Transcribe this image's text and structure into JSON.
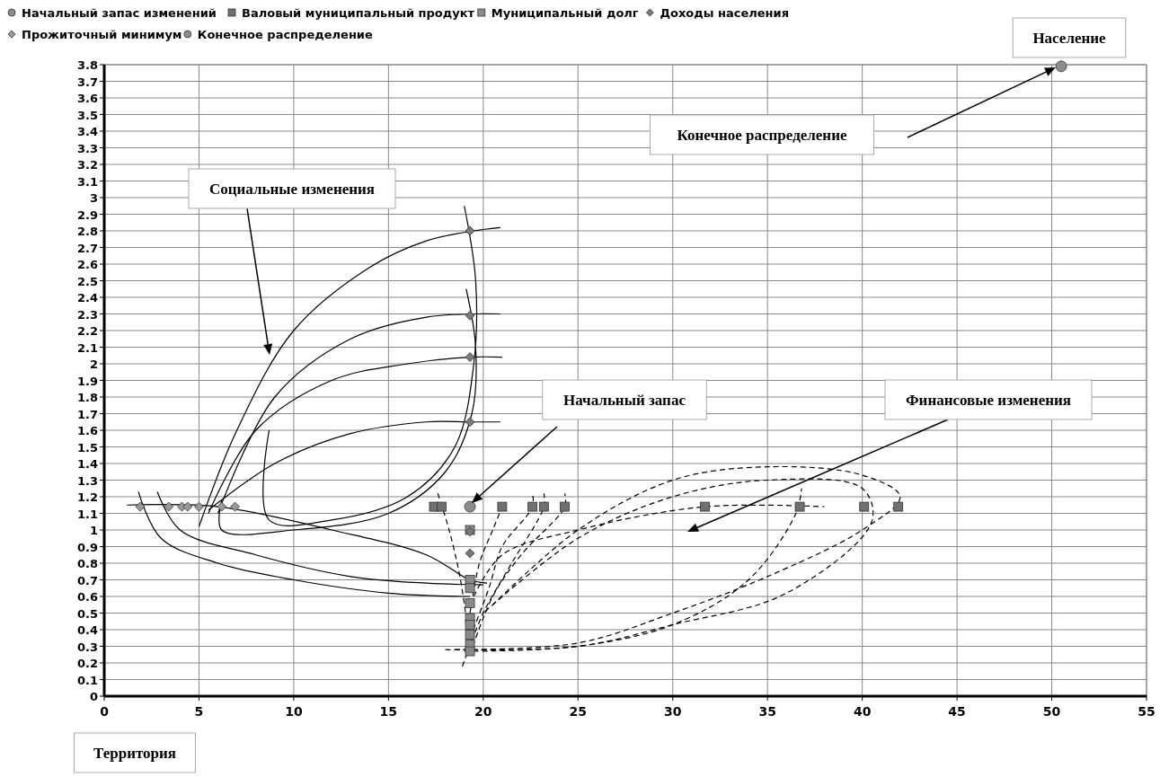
{
  "chart_data": {
    "type": "scatter",
    "xlabel": "Территория",
    "ylabel": "Население",
    "xlim": [
      0,
      55
    ],
    "xticks": [
      0,
      5,
      10,
      15,
      20,
      25,
      30,
      35,
      40,
      45,
      50,
      55
    ],
    "ylim": [
      0,
      3.8
    ],
    "yticks": [
      0,
      0.1,
      0.2,
      0.3,
      0.4,
      0.5,
      0.6,
      0.7,
      0.8,
      0.9,
      1,
      1.1,
      1.2,
      1.3,
      1.4,
      1.5,
      1.6,
      1.7,
      1.8,
      1.9,
      2,
      2.1,
      2.2,
      2.3,
      2.4,
      2.5,
      2.6,
      2.7,
      2.8,
      2.9,
      3,
      3.1,
      3.2,
      3.3,
      3.4,
      3.5,
      3.6,
      3.7,
      3.8
    ],
    "grid": true,
    "legend": "top",
    "annotations": [
      "Конечное распределение",
      "Социальные изменения",
      "Начальный запас",
      "Финансовые изменения"
    ],
    "series": [
      {
        "name": "Начальный запас изменений",
        "marker": "circle",
        "color": "#8c8c8c",
        "x": [
          19.3
        ],
        "values": [
          1.14
        ]
      },
      {
        "name": "Валовый муниципальный продукт",
        "marker": "square",
        "color": "#707070",
        "x": [
          17.4,
          17.8,
          21.0,
          22.6,
          23.2,
          24.3,
          31.7,
          36.7,
          40.1,
          41.9
        ],
        "values": [
          1.14,
          1.14,
          1.14,
          1.14,
          1.14,
          1.14,
          1.14,
          1.14,
          1.14,
          1.14
        ]
      },
      {
        "name": "Муниципальный долг",
        "marker": "square",
        "color": "#8a8a8a",
        "x": [
          19.3,
          19.3,
          19.3,
          19.3,
          19.3,
          19.3,
          19.3,
          19.3,
          19.3
        ],
        "values": [
          1.0,
          0.7,
          0.65,
          0.56,
          0.47,
          0.43,
          0.37,
          0.31,
          0.27
        ]
      },
      {
        "name": "Доходы населения",
        "marker": "diamond",
        "color": "#7a7a7a",
        "x": [
          19.3,
          19.3,
          19.3,
          19.3,
          19.3,
          19.3
        ],
        "values": [
          2.8,
          2.29,
          2.04,
          1.65,
          0.99,
          0.86
        ]
      },
      {
        "name": "Прожиточный минимум",
        "marker": "diamond",
        "color": "#9a9a9a",
        "x": [
          1.9,
          3.4,
          4.1,
          4.4,
          5.0,
          6.2,
          6.9
        ],
        "values": [
          1.14,
          1.14,
          1.14,
          1.14,
          1.14,
          1.14,
          1.14
        ]
      },
      {
        "name": "Конечное распределение",
        "marker": "circle",
        "color": "#8c8c8c",
        "x": [
          50.5
        ],
        "values": [
          3.79
        ]
      },
      {
        "type": "line",
        "marker": "none",
        "line_style": "solid",
        "color": "#000000",
        "x": [
          5.0,
          7.0,
          10.0,
          14.0,
          17.0,
          19.5,
          20.9
        ],
        "values": [
          1.02,
          1.6,
          2.2,
          2.58,
          2.74,
          2.8,
          2.82
        ]
      },
      {
        "type": "line",
        "marker": "none",
        "line_style": "solid",
        "color": "#000000",
        "x": [
          6.0,
          9.0,
          13.0,
          17.0,
          19.5,
          20.9
        ],
        "values": [
          1.1,
          1.8,
          2.15,
          2.28,
          2.3,
          2.3
        ]
      },
      {
        "type": "line",
        "marker": "none",
        "line_style": "solid",
        "color": "#000000",
        "x": [
          5.5,
          8.0,
          12.0,
          16.0,
          19.3,
          21.0
        ],
        "values": [
          1.1,
          1.6,
          1.9,
          2.0,
          2.04,
          2.04
        ]
      },
      {
        "type": "line",
        "marker": "none",
        "line_style": "solid",
        "color": "#000000",
        "x": [
          5.5,
          9.0,
          13.0,
          17.0,
          19.3,
          20.9
        ],
        "values": [
          1.12,
          1.4,
          1.58,
          1.65,
          1.65,
          1.65
        ]
      },
      {
        "type": "line",
        "marker": "none",
        "line_style": "solid",
        "color": "#000000",
        "x": [
          19.0,
          19.6,
          19.5,
          18.5,
          16.0,
          12.0,
          8.7,
          8.7
        ],
        "values": [
          2.95,
          2.5,
          2.0,
          1.5,
          1.2,
          1.06,
          1.06,
          1.6
        ]
      },
      {
        "type": "line",
        "marker": "none",
        "line_style": "solid",
        "color": "#000000",
        "x": [
          19.1,
          19.6,
          19.4,
          18.0,
          15.0,
          10.0,
          6.2,
          6.2
        ],
        "values": [
          2.45,
          2.1,
          1.7,
          1.35,
          1.1,
          1.0,
          1.0,
          1.18
        ]
      },
      {
        "type": "line",
        "marker": "none",
        "line_style": "solid",
        "color": "#000000",
        "x": [
          1.8,
          3.0,
          6.0,
          10.0,
          15.0,
          19.3
        ],
        "values": [
          1.23,
          0.95,
          0.8,
          0.7,
          0.62,
          0.6
        ]
      },
      {
        "type": "line",
        "marker": "none",
        "line_style": "solid",
        "color": "#000000",
        "x": [
          2.8,
          4.0,
          8.0,
          13.0,
          17.0,
          20.0
        ],
        "values": [
          1.23,
          1.0,
          0.85,
          0.72,
          0.68,
          0.67
        ]
      },
      {
        "type": "line",
        "marker": "none",
        "line_style": "solid",
        "color": "#000000",
        "x": [
          1.2,
          6.0,
          12.0,
          17.0,
          19.3,
          20.2
        ],
        "values": [
          1.15,
          1.14,
          1.0,
          0.85,
          0.7,
          0.68
        ]
      },
      {
        "type": "line",
        "marker": "none",
        "line_style": "dashed",
        "color": "#000000",
        "x": [
          18.5,
          25.0,
          30.0,
          35.0,
          40.0,
          42.0,
          40.0,
          35.0,
          30.0,
          25.0,
          20.5
        ],
        "values": [
          0.28,
          0.32,
          0.5,
          0.72,
          1.0,
          1.2,
          1.33,
          1.38,
          1.3,
          1.0,
          0.55
        ]
      },
      {
        "type": "line",
        "marker": "none",
        "line_style": "dashed",
        "color": "#000000",
        "x": [
          18.0,
          25.0,
          30.0,
          36.0,
          40.5,
          40.0,
          35.0,
          30.0,
          25.0,
          20.0
        ],
        "values": [
          0.28,
          0.3,
          0.43,
          0.62,
          1.05,
          1.25,
          1.3,
          1.2,
          0.95,
          0.5
        ]
      },
      {
        "type": "line",
        "marker": "none",
        "line_style": "dashed",
        "color": "#000000",
        "x": [
          19.0,
          25.0,
          30.0,
          34.0,
          36.5,
          36.8
        ],
        "values": [
          0.27,
          0.3,
          0.43,
          0.7,
          1.1,
          1.25
        ]
      },
      {
        "type": "line",
        "marker": "none",
        "line_style": "dashed",
        "color": "#000000",
        "x": [
          19.5,
          21.0,
          25.0,
          31.7,
          38.0
        ],
        "values": [
          0.6,
          0.85,
          1.0,
          1.14,
          1.14
        ]
      },
      {
        "type": "line",
        "marker": "none",
        "line_style": "dashed",
        "color": "#000000",
        "x": [
          19.3,
          20.5,
          22.0,
          24.3,
          24.3
        ],
        "values": [
          0.25,
          0.6,
          0.85,
          1.14,
          1.22
        ]
      },
      {
        "type": "line",
        "marker": "none",
        "line_style": "dashed",
        "color": "#000000",
        "x": [
          18.9,
          20.0,
          21.5,
          23.2,
          23.2
        ],
        "values": [
          0.18,
          0.5,
          0.8,
          1.14,
          1.22
        ]
      },
      {
        "type": "line",
        "marker": "none",
        "line_style": "dashed",
        "color": "#000000",
        "x": [
          19.3,
          20.3,
          21.0,
          22.6,
          22.6
        ],
        "values": [
          0.35,
          0.65,
          0.9,
          1.14,
          1.22
        ]
      },
      {
        "type": "line",
        "marker": "none",
        "line_style": "dashed",
        "color": "#000000",
        "x": [
          19.3,
          19.8,
          20.5,
          21.0
        ],
        "values": [
          0.5,
          0.8,
          1.0,
          1.14
        ]
      },
      {
        "type": "line",
        "marker": "none",
        "line_style": "dashed",
        "color": "#000000",
        "x": [
          17.6,
          18.2,
          18.8,
          19.3
        ],
        "values": [
          1.22,
          1.0,
          0.7,
          0.3
        ]
      }
    ]
  }
}
